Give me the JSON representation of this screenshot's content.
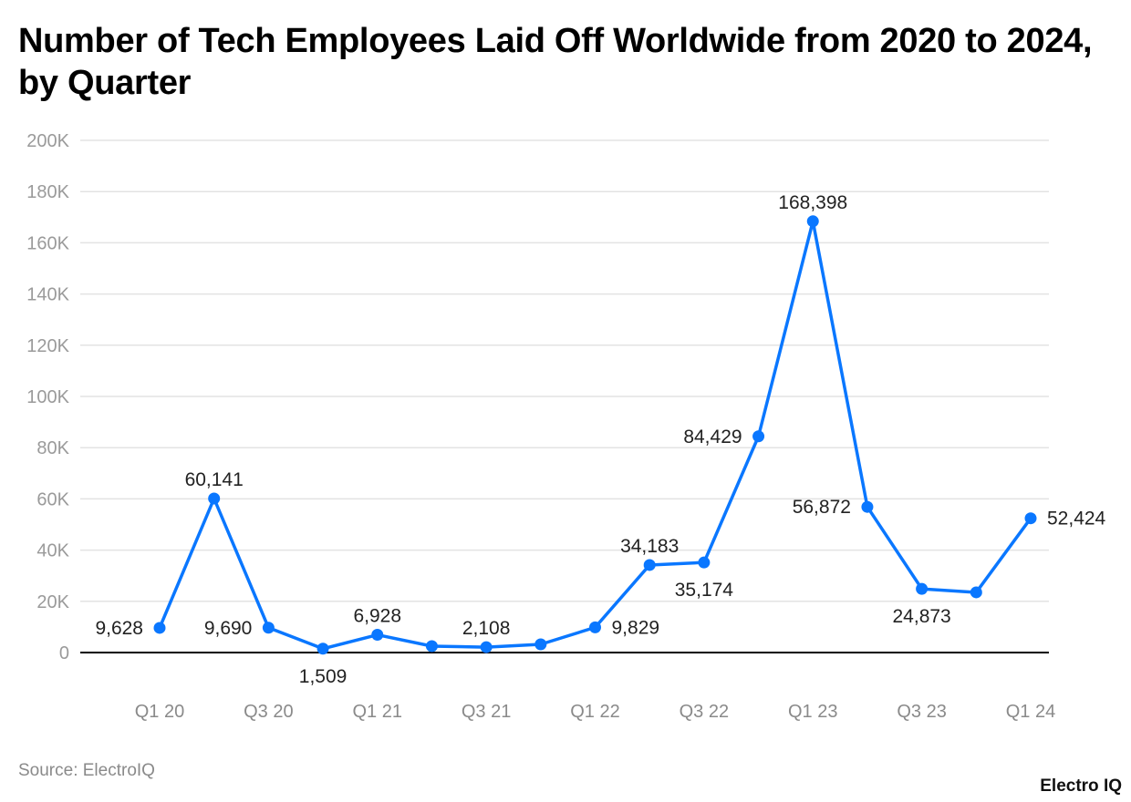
{
  "chart_data": {
    "type": "line",
    "title": "Number of Tech Employees Laid Off Worldwide from 2020 to 2024, by Quarter",
    "xlabel": "",
    "ylabel": "",
    "ylim": [
      0,
      200000
    ],
    "yticks": [
      0,
      20000,
      40000,
      60000,
      80000,
      100000,
      120000,
      140000,
      160000,
      180000,
      200000
    ],
    "ytick_labels": [
      "0",
      "20K",
      "40K",
      "60K",
      "80K",
      "100K",
      "120K",
      "140K",
      "160K",
      "180K",
      "200K"
    ],
    "categories": [
      "Q1 20",
      "Q2 20",
      "Q3 20",
      "Q4 20",
      "Q1 21",
      "Q2 21",
      "Q3 21",
      "Q4 21",
      "Q1 22",
      "Q2 22",
      "Q3 22",
      "Q4 22",
      "Q1 23",
      "Q2 23",
      "Q3 23",
      "Q4 23",
      "Q1 24"
    ],
    "xtick_labels": [
      "Q1 20",
      "",
      "Q3 20",
      "",
      "Q1 21",
      "",
      "Q3 21",
      "",
      "Q1 22",
      "",
      "Q3 22",
      "",
      "Q1 23",
      "",
      "Q3 23",
      "",
      "Q1 24"
    ],
    "grid": true,
    "series": [
      {
        "name": "Tech employees laid off",
        "color": "#0a77ff",
        "values": [
          9628,
          60141,
          9690,
          1509,
          6928,
          2500,
          2108,
          3200,
          9829,
          34183,
          35174,
          84429,
          168398,
          56872,
          24873,
          23500,
          52424
        ],
        "labels": [
          "9,628",
          "60,141",
          "9,690",
          "1,509",
          "6,928",
          null,
          "2,108",
          null,
          "9,829",
          "34,183",
          "35,174",
          "84,429",
          "168,398",
          "56,872",
          "24,873",
          null,
          "52,424"
        ]
      }
    ]
  },
  "source": "Source: ElectroIQ",
  "brand": "Electro IQ"
}
